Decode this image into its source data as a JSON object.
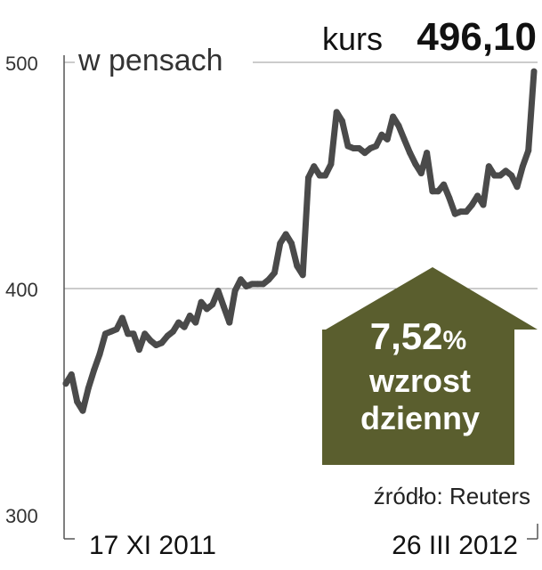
{
  "chart_data": {
    "type": "line",
    "unit_label": "w pensach",
    "y_ticks": [
      "500",
      "400",
      "300"
    ],
    "ylim": [
      300,
      500
    ],
    "grid": true,
    "start_date": "17 XI 2011",
    "end_date": "26 III 2012",
    "current_label": "kurs",
    "current_value": "496,10",
    "change_percent": "7,52",
    "change_percent_sign": "%",
    "change_line1": "wzrost",
    "change_line2": "dzienny",
    "source": "źródło: Reuters",
    "values": [
      358,
      362,
      350,
      346,
      356,
      364,
      371,
      380,
      381,
      382,
      387,
      380,
      380,
      373,
      380,
      377,
      375,
      376,
      379,
      381,
      385,
      383,
      388,
      385,
      394,
      391,
      393,
      399,
      392,
      385,
      399,
      404,
      401,
      402,
      402,
      402,
      404,
      407,
      420,
      424,
      420,
      410,
      406,
      449,
      454,
      450,
      450,
      455,
      478,
      474,
      463,
      462,
      462,
      460,
      462,
      463,
      468,
      466,
      476,
      472,
      466,
      460,
      455,
      451,
      460,
      443,
      443,
      446,
      440,
      433,
      434,
      434,
      437,
      441,
      437,
      454,
      450,
      450,
      452,
      450,
      445,
      454,
      461,
      496
    ],
    "colors": {
      "line": "#4a4a4a",
      "arrow": "#5a5e2e",
      "grid": "#999999"
    }
  }
}
